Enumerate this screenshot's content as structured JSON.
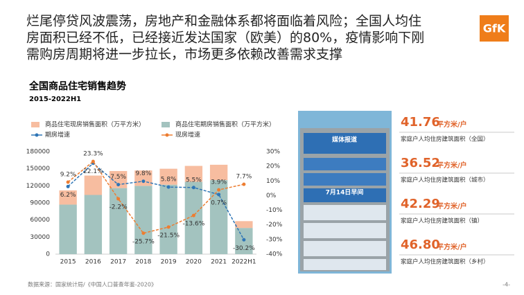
{
  "header": {
    "title_lines": [
      "烂尾停贷风波震荡，房地产和金融体系都将面临着风险；全国人均住",
      "房面积已经不低，已经接近发达国家（欧美）的80%，疫情影响下刚",
      "需购房周期将进一步拉长，市场更多依赖改善需求支撑"
    ],
    "logo": "GfK"
  },
  "chart_data": {
    "type": "bar",
    "title": "全国商品住宅销售趋势",
    "subtitle": "2015-2022H1",
    "stacked": true,
    "categories": [
      "2015",
      "2016",
      "2017",
      "2018",
      "2019",
      "2020",
      "2021",
      "2022H1"
    ],
    "series": [
      {
        "name": "商品住宅期房销售面积（万平方米）",
        "color": "#a3c3bf",
        "values": [
          87000,
          104000,
          116000,
          120000,
          122000,
          127000,
          130000,
          46000
        ]
      },
      {
        "name": "商品住宅现房销售面积（万平方米）",
        "color": "#f7bda0",
        "values": [
          25000,
          34000,
          30000,
          27000,
          28000,
          28000,
          27000,
          12000
        ]
      },
      {
        "name": "期房增速",
        "type": "line",
        "axis": "y2",
        "color": "#2e75b6",
        "values": [
          6.2,
          22.1,
          7.5,
          9.8,
          5.8,
          5.5,
          0.7,
          -30.2
        ],
        "value_labels": [
          "6.2%",
          "22.1%",
          "7.5%",
          "9.8%",
          "5.8%",
          "5.5%",
          "0.7%",
          "-30.2%"
        ]
      },
      {
        "name": "现房增速",
        "type": "line",
        "axis": "y2",
        "color": "#ed7d31",
        "values": [
          9.2,
          23.3,
          -2.2,
          -25.7,
          -21.5,
          -13.6,
          3.9,
          7.7
        ],
        "value_labels": [
          "9.2%",
          "23.3%",
          "-2.2%",
          "-25.7%",
          "-21.5%",
          "-13.6%",
          "3.9%",
          "7.7%"
        ]
      }
    ],
    "legend_order": [
      1,
      0,
      2,
      3
    ],
    "ylim": [
      0,
      180000
    ],
    "yticks": [
      0,
      30000,
      60000,
      90000,
      120000,
      150000,
      180000
    ],
    "y2lim": [
      -40,
      30
    ],
    "y2ticks": [
      {
        "value": -40,
        "label": "-40%"
      },
      {
        "value": -30,
        "label": "-30%"
      },
      {
        "value": -20,
        "label": "-20%"
      },
      {
        "value": -10,
        "label": "-10%"
      },
      {
        "value": 0,
        "label": "0%"
      },
      {
        "value": 10,
        "label": "10%"
      },
      {
        "value": 20,
        "label": "20%"
      },
      {
        "value": 30,
        "label": "30%"
      }
    ],
    "grid": false
  },
  "poster": {
    "heading": "媒体报道",
    "date": "7月14日早间"
  },
  "stats": [
    {
      "value": "41.76",
      "unit": "平方米/户",
      "label": "家庭户人均住房建筑面积（全国）"
    },
    {
      "value": "36.52",
      "unit": "平方米/户",
      "label": "家庭户人均住房建筑面积（城市）"
    },
    {
      "value": "42.29",
      "unit": "平方米/户",
      "label": "家庭户人均住房建筑面积（镇）"
    },
    {
      "value": "46.80",
      "unit": "平方米/户",
      "label": "家庭户人均住房建筑面积（乡村）"
    }
  ],
  "footer": {
    "source": "数据来源：国家统计局/《中国人口普查年鉴-2020》",
    "page": "-4-"
  }
}
